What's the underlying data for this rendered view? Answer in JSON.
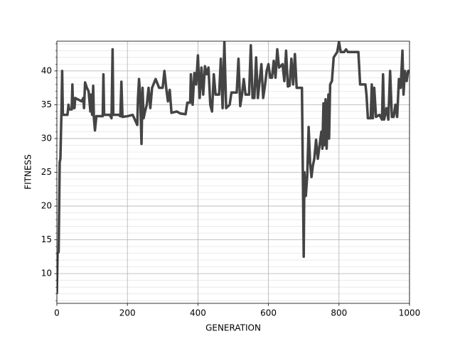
{
  "chart_data": {
    "type": "line",
    "xlabel": "GENERATION",
    "ylabel": "FITNESS",
    "x": [
      0,
      2,
      5,
      8,
      10,
      13,
      15,
      17,
      30,
      33,
      35,
      42,
      44,
      46,
      50,
      52,
      70,
      75,
      77,
      80,
      85,
      90,
      95,
      97,
      100,
      103,
      105,
      108,
      112,
      130,
      132,
      134,
      150,
      155,
      158,
      160,
      175,
      180,
      183,
      186,
      200,
      215,
      228,
      230,
      233,
      236,
      240,
      243,
      246,
      250,
      255,
      260,
      265,
      270,
      280,
      290,
      300,
      305,
      310,
      315,
      320,
      325,
      340,
      350,
      365,
      370,
      378,
      380,
      385,
      390,
      395,
      400,
      405,
      410,
      415,
      420,
      425,
      430,
      435,
      440,
      445,
      450,
      460,
      465,
      470,
      475,
      480,
      490,
      495,
      510,
      515,
      520,
      525,
      530,
      535,
      545,
      550,
      555,
      560,
      565,
      570,
      580,
      585,
      590,
      595,
      600,
      605,
      610,
      615,
      620,
      625,
      630,
      640,
      645,
      650,
      655,
      660,
      665,
      670,
      675,
      680,
      695,
      700,
      702,
      706,
      710,
      714,
      718,
      722,
      726,
      730,
      735,
      740,
      745,
      750,
      753,
      756,
      758,
      762,
      765,
      770,
      772,
      775,
      780,
      785,
      795,
      800,
      805,
      815,
      820,
      825,
      855,
      860,
      875,
      878,
      882,
      890,
      893,
      896,
      900,
      905,
      915,
      922,
      925,
      928,
      935,
      940,
      945,
      950,
      955,
      960,
      965,
      970,
      975,
      980,
      983,
      987,
      992,
      996,
      1000
    ],
    "values": [
      7,
      13,
      13.2,
      26.5,
      27,
      34,
      40,
      33.5,
      33.5,
      35,
      34.3,
      34.3,
      38,
      34.5,
      34.5,
      36,
      35.5,
      36,
      34.5,
      38.3,
      37.5,
      37,
      34,
      36.5,
      33.5,
      37.8,
      33,
      31.2,
      33.3,
      33.3,
      39.5,
      33.5,
      33.5,
      33,
      43.2,
      33.5,
      33.5,
      33.3,
      38.4,
      33.2,
      33.3,
      33.5,
      32,
      36,
      38.8,
      36.5,
      29.2,
      37.5,
      33,
      34,
      35,
      37.5,
      34.5,
      37.5,
      38.8,
      37.5,
      37.5,
      40,
      37.5,
      35.5,
      37.2,
      33.8,
      34,
      33.7,
      33.6,
      35.3,
      35.3,
      39.5,
      35,
      39.7,
      38,
      42.3,
      36,
      40.5,
      36.5,
      40.7,
      39.5,
      40.5,
      35,
      34,
      39.5,
      36.5,
      36.5,
      41.8,
      34.5,
      44.3,
      34.5,
      35,
      36.8,
      36.8,
      41.8,
      34.8,
      36.5,
      38.8,
      36.5,
      36.5,
      43.8,
      36,
      36,
      42,
      36,
      41,
      36,
      37.8,
      40,
      41,
      39,
      39,
      41.5,
      39,
      43.2,
      40.5,
      41,
      38.5,
      43,
      37.7,
      37.8,
      41.8,
      38,
      42.5,
      37.5,
      37.5,
      12.5,
      25,
      21.5,
      24.5,
      31.7,
      26.5,
      24.3,
      26,
      27,
      29.8,
      27,
      29,
      31,
      28.5,
      35.2,
      29,
      35.8,
      28.5,
      36.5,
      30,
      38,
      38.5,
      42,
      42.8,
      44.3,
      42.8,
      42.8,
      43.2,
      42.8,
      42.8,
      38,
      38,
      36.5,
      33,
      33,
      38,
      33,
      37.5,
      33.2,
      33.5,
      32.8,
      39.5,
      32.8,
      34.5,
      32.8,
      40,
      33.2,
      33.2,
      35,
      33.2,
      38.8,
      37.5,
      43,
      36.5,
      40,
      38.5,
      40,
      40
    ],
    "color": "#444444",
    "xlim": [
      0,
      1000
    ],
    "xticks": [
      0,
      200,
      400,
      600,
      800,
      1000
    ],
    "ylim": [
      5.6,
      44.4
    ],
    "yticks": [
      10,
      15,
      20,
      25,
      30,
      35,
      40
    ],
    "yminorticks": [
      6,
      7,
      8,
      9,
      11,
      12,
      13,
      14,
      16,
      17,
      18,
      19,
      21,
      22,
      23,
      24,
      26,
      27,
      28,
      29,
      31,
      32,
      33,
      34,
      36,
      37,
      38,
      39,
      41,
      42,
      43,
      44
    ],
    "grid": true
  }
}
